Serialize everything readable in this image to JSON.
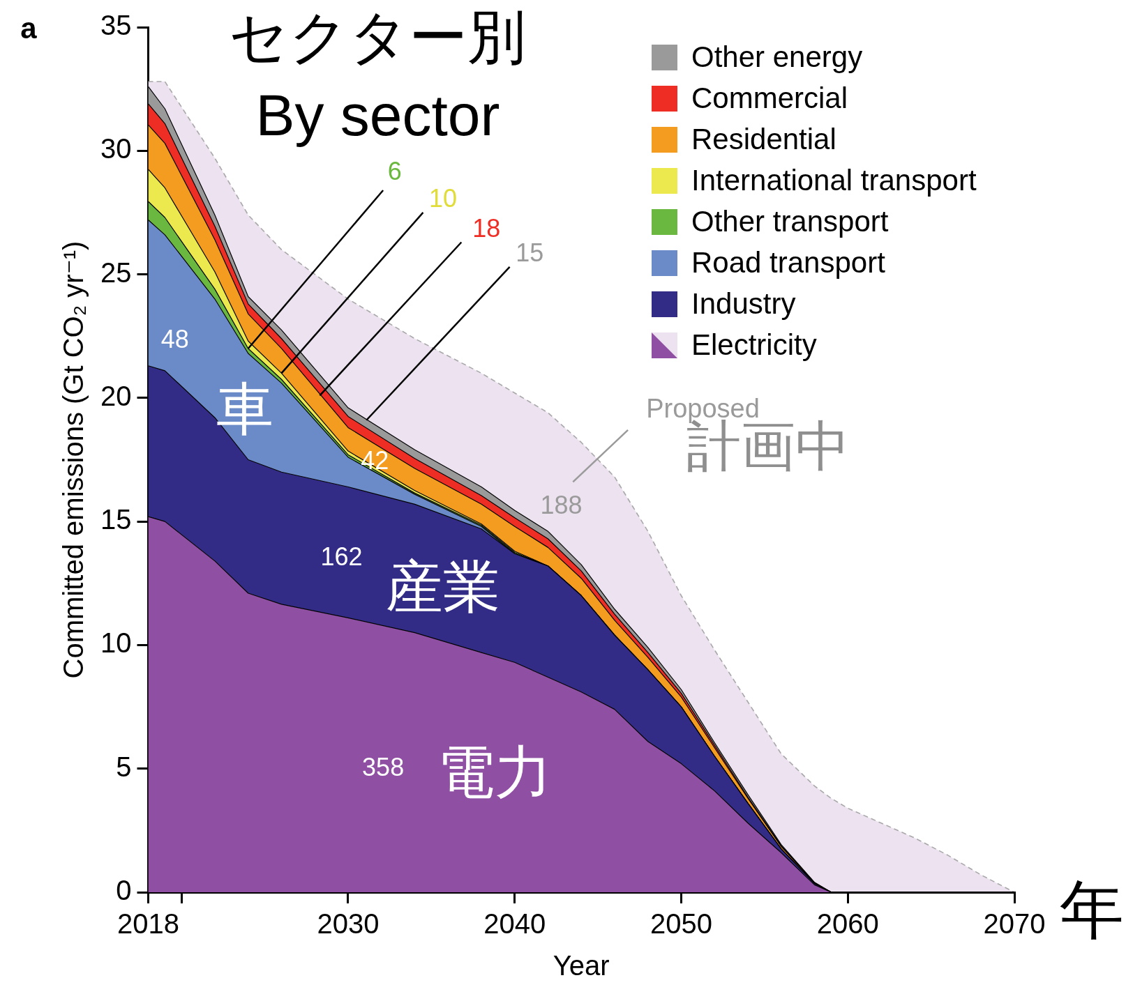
{
  "chart_data": {
    "type": "area",
    "title": "セクター別",
    "subtitle": "By sector",
    "xlabel": "Year",
    "ylabel": "Committed emissions (Gt CO₂ yr⁻¹)",
    "stacked": true,
    "x": [
      2018,
      2019,
      2022,
      2024,
      2026,
      2030,
      2034,
      2038,
      2040,
      2042,
      2044,
      2046,
      2048,
      2050,
      2052,
      2054,
      2056,
      2058,
      2059,
      2060,
      2064,
      2066,
      2068,
      2070
    ],
    "series": [
      {
        "name": "Electricity",
        "color": "#8f4fa3",
        "values": [
          15.2,
          15.0,
          13.4,
          12.1,
          11.65,
          11.1,
          10.5,
          9.7,
          9.3,
          8.7,
          8.1,
          7.4,
          6.1,
          5.2,
          4.1,
          2.8,
          1.6,
          0.3,
          0,
          0,
          0,
          0,
          0,
          0
        ]
      },
      {
        "name": "Industry",
        "color": "#322c86",
        "values": [
          6.1,
          6.1,
          5.8,
          5.4,
          5.35,
          5.3,
          5.2,
          5.0,
          4.4,
          4.5,
          3.9,
          3.0,
          2.9,
          2.3,
          1.4,
          0.8,
          0.15,
          0.05,
          0,
          0,
          0,
          0,
          0,
          0
        ]
      },
      {
        "name": "Road transport",
        "color": "#6b8ac8",
        "values": [
          5.9,
          5.5,
          4.8,
          4.3,
          3.6,
          1.2,
          0.4,
          0.1,
          0,
          0,
          0,
          0,
          0,
          0,
          0,
          0,
          0,
          0,
          0,
          0,
          0,
          0,
          0,
          0
        ]
      },
      {
        "name": "Other transport",
        "color": "#6ab83f",
        "values": [
          0.75,
          0.7,
          0.4,
          0.2,
          0.15,
          0.1,
          0.05,
          0.05,
          0.05,
          0,
          0,
          0,
          0,
          0,
          0,
          0,
          0,
          0,
          0,
          0,
          0,
          0,
          0,
          0
        ]
      },
      {
        "name": "International transport",
        "color": "#ece94f",
        "values": [
          1.3,
          1.2,
          0.7,
          0.3,
          0.25,
          0.15,
          0.1,
          0.05,
          0.05,
          0,
          0,
          0,
          0,
          0,
          0,
          0,
          0,
          0,
          0,
          0,
          0,
          0,
          0,
          0
        ]
      },
      {
        "name": "Residential",
        "color": "#f39c1f",
        "values": [
          1.8,
          1.8,
          1.3,
          1.1,
          1.0,
          0.95,
          0.9,
          0.8,
          1.0,
          0.75,
          0.7,
          0.6,
          0.5,
          0.4,
          0.35,
          0.2,
          0.1,
          0.03,
          0,
          0,
          0,
          0,
          0,
          0
        ]
      },
      {
        "name": "Commercial",
        "color": "#ee2d24",
        "values": [
          0.85,
          0.8,
          0.55,
          0.4,
          0.4,
          0.45,
          0.4,
          0.35,
          0.35,
          0.35,
          0.3,
          0.25,
          0.2,
          0.15,
          0.1,
          0.05,
          0.03,
          0.01,
          0,
          0,
          0,
          0,
          0,
          0
        ]
      },
      {
        "name": "Other energy",
        "color": "#9a9a9a",
        "values": [
          0.7,
          0.6,
          0.45,
          0.3,
          0.35,
          0.35,
          0.35,
          0.35,
          0.3,
          0.3,
          0.25,
          0.2,
          0.2,
          0.15,
          0.1,
          0.1,
          0.05,
          0.01,
          0,
          0,
          0,
          0,
          0,
          0
        ]
      },
      {
        "color": "#ede2f0",
        "line_style": "dashed",
        "values": [
          0.2,
          1.1,
          2.3,
          3.3,
          3.25,
          4.4,
          4.5,
          4.6,
          4.75,
          4.8,
          4.95,
          5.35,
          4.7,
          3.8,
          3.75,
          3.75,
          3.67,
          3.9,
          3.8,
          3.4,
          2.2,
          1.5,
          0.7,
          0
        ]
      }
    ],
    "xlim": [
      2018,
      2070
    ],
    "xticks": [
      2018,
      {
        "value": 2020,
        "label": null
      },
      2030,
      2040,
      2050,
      2060,
      2070
    ],
    "ylim": [
      0,
      35
    ],
    "yticks": [
      0,
      5,
      10,
      15,
      20,
      25,
      30,
      35
    ],
    "legend": "top right",
    "annotations": [
      "a",
      "48",
      "車",
      "42",
      "162",
      "産業",
      "358",
      "電力",
      {
        "text": "6",
        "x": 2024,
        "y": 22.0
      },
      {
        "text": "10",
        "x": 2026,
        "y": 21.0
      },
      {
        "text": "18",
        "x": 2028.3,
        "y": 20.1
      },
      {
        "text": "15",
        "x": 2031.1,
        "y": 19.1
      },
      "188",
      "Proposed",
      "計画中",
      "年"
    ]
  }
}
